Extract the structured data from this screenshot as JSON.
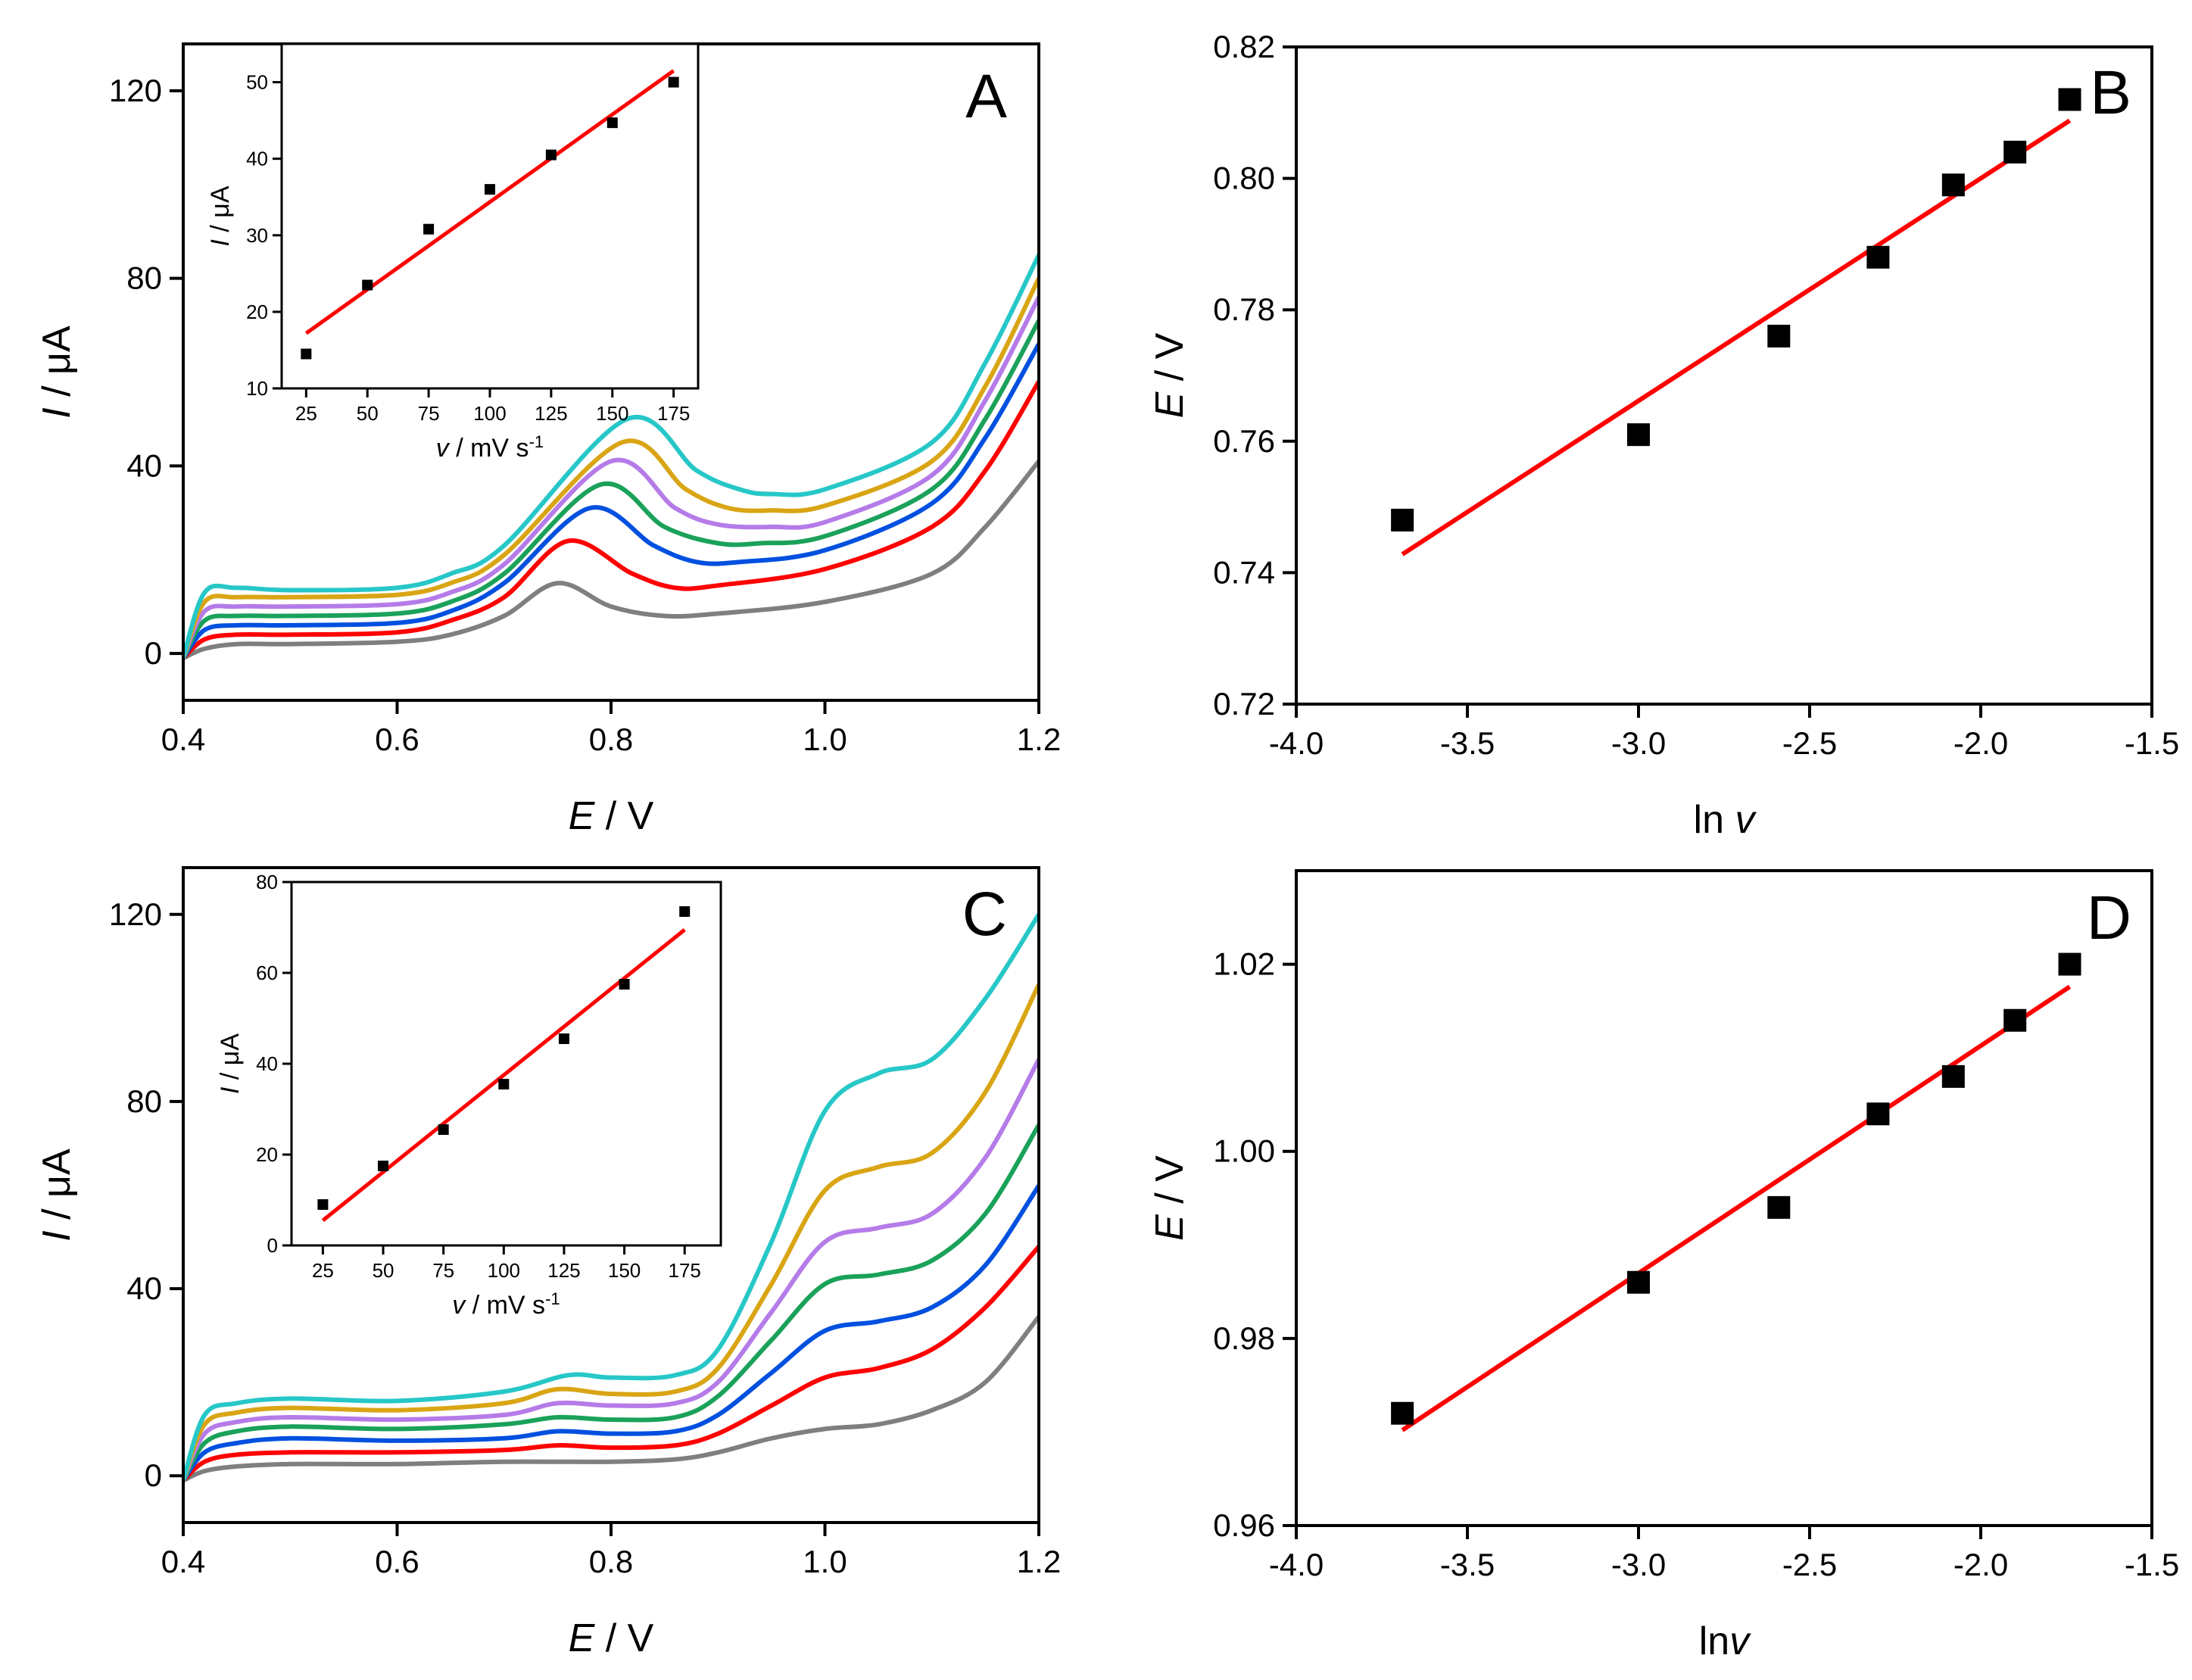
{
  "colors": {
    "fit_line": "#ff0000",
    "marker": "#000000",
    "axis": "#000000"
  },
  "chart_data": [
    {
      "id": "A",
      "type": "line",
      "panel_label": "A",
      "xlabel": {
        "italic": "E",
        "rest": " / V"
      },
      "ylabel": {
        "italic": "I",
        "rest": " / μA"
      },
      "xlim": [
        0.4,
        1.2
      ],
      "ylim": [
        -10,
        130
      ],
      "x_ticks": [
        0.4,
        0.6,
        0.8,
        1.0,
        1.2
      ],
      "x_tick_labels": [
        "0.4",
        "0.6",
        "0.8",
        "1.0",
        "1.2"
      ],
      "y_ticks": [
        0,
        40,
        80,
        120
      ],
      "y_tick_labels": [
        "0",
        "40",
        "80",
        "120"
      ],
      "series_shape": {
        "base": [
          2,
          4,
          6,
          8,
          10,
          12,
          13
        ],
        "peak": [
          12,
          20,
          24,
          27,
          30,
          33,
          36
        ],
        "peak_center": 0.75,
        "peak_shift": 0.01,
        "end": [
          41,
          58,
          66,
          71,
          76,
          80,
          85
        ]
      },
      "series": [
        {
          "color": "#7f7f7f",
          "x": [
            0.4,
            0.42,
            0.45,
            0.5,
            0.6,
            0.65,
            0.7,
            0.75,
            0.8,
            0.85,
            0.9,
            1.0,
            1.1,
            1.15,
            1.2
          ],
          "y": [
            -1,
            1,
            2,
            2,
            2.5,
            4,
            8,
            15,
            10,
            8,
            8.5,
            11,
            17,
            27,
            41
          ]
        },
        {
          "color": "#ff0000",
          "x": [
            0.4,
            0.42,
            0.45,
            0.5,
            0.6,
            0.65,
            0.7,
            0.76,
            0.82,
            0.86,
            0.9,
            1.0,
            1.1,
            1.15,
            1.2
          ],
          "y": [
            -1,
            3,
            4,
            4,
            4.5,
            7,
            12,
            24,
            17,
            14,
            14.5,
            18,
            27,
            39,
            58
          ]
        },
        {
          "color": "#0050e0",
          "x": [
            0.4,
            0.42,
            0.45,
            0.5,
            0.6,
            0.65,
            0.7,
            0.78,
            0.84,
            0.88,
            0.92,
            1.0,
            1.1,
            1.15,
            1.2
          ],
          "y": [
            -1,
            5,
            6,
            6,
            6.5,
            9,
            15,
            31,
            23,
            19.5,
            19.5,
            22,
            32,
            46,
            66
          ]
        },
        {
          "color": "#1aa15a",
          "x": [
            0.4,
            0.42,
            0.45,
            0.5,
            0.6,
            0.65,
            0.7,
            0.79,
            0.85,
            0.9,
            0.94,
            1.0,
            1.1,
            1.15,
            1.2
          ],
          "y": [
            -1,
            7,
            8,
            8,
            8.5,
            11,
            17,
            36,
            27,
            23.5,
            23.5,
            25,
            35,
            50,
            71
          ]
        },
        {
          "color": "#b57be8",
          "x": [
            0.4,
            0.42,
            0.45,
            0.5,
            0.6,
            0.65,
            0.7,
            0.8,
            0.86,
            0.9,
            0.95,
            1.0,
            1.1,
            1.15,
            1.2
          ],
          "y": [
            -1,
            9,
            10,
            10,
            10.5,
            13,
            19,
            41,
            31,
            27.5,
            27,
            28,
            38,
            54,
            76
          ]
        },
        {
          "color": "#d9a514",
          "x": [
            0.4,
            0.42,
            0.45,
            0.5,
            0.6,
            0.65,
            0.7,
            0.81,
            0.87,
            0.91,
            0.95,
            1.0,
            1.1,
            1.15,
            1.2
          ],
          "y": [
            -1,
            11,
            12,
            12,
            12.5,
            15,
            21,
            45,
            35,
            31,
            30.5,
            31.5,
            41,
            57,
            80
          ]
        },
        {
          "color": "#27c7c7",
          "x": [
            0.4,
            0.42,
            0.45,
            0.5,
            0.6,
            0.65,
            0.7,
            0.815,
            0.88,
            0.92,
            0.95,
            1.0,
            1.1,
            1.15,
            1.2
          ],
          "y": [
            -1,
            13,
            14,
            13.5,
            14,
            17,
            23,
            50,
            39,
            35,
            34,
            35,
            45,
            62,
            85
          ]
        }
      ],
      "inset": {
        "type": "scatter",
        "xlabel": {
          "italic": "v",
          "rest": " / mV s",
          "sup": "-1"
        },
        "ylabel": {
          "italic": "I",
          "rest": " / μA"
        },
        "xlim": [
          15,
          185
        ],
        "ylim": [
          10,
          55
        ],
        "x_ticks": [
          25,
          50,
          75,
          100,
          125,
          150,
          175
        ],
        "x_tick_labels": [
          "25",
          "50",
          "75",
          "100",
          "125",
          "150",
          "175"
        ],
        "y_ticks": [
          10,
          20,
          30,
          40,
          50
        ],
        "y_tick_labels": [
          "10",
          "20",
          "30",
          "40",
          "50"
        ],
        "x": [
          25,
          50,
          75,
          100,
          125,
          150,
          175
        ],
        "y": [
          14.5,
          23.5,
          30.8,
          36,
          40.5,
          44.7,
          50
        ],
        "fit": {
          "x": [
            25,
            175
          ],
          "y": [
            17.2,
            51.5
          ]
        }
      }
    },
    {
      "id": "B",
      "type": "scatter",
      "panel_label": "B",
      "xlabel": {
        "italic": "",
        "rest": "ln ",
        "italic_after": "v"
      },
      "ylabel": {
        "italic": "E",
        "rest": " / V"
      },
      "xlim": [
        -4.0,
        -1.5
      ],
      "ylim": [
        0.72,
        0.82
      ],
      "x_ticks": [
        -4.0,
        -3.5,
        -3.0,
        -2.5,
        -2.0,
        -1.5
      ],
      "x_tick_labels": [
        "-4.0",
        "-3.5",
        "-3.0",
        "-2.5",
        "-2.0",
        "-1.5"
      ],
      "y_ticks": [
        0.72,
        0.74,
        0.76,
        0.78,
        0.8,
        0.82
      ],
      "y_tick_labels": [
        "0.72",
        "0.74",
        "0.76",
        "0.78",
        "0.80",
        "0.82"
      ],
      "x": [
        -3.69,
        -3.0,
        -2.59,
        -2.3,
        -2.08,
        -1.9,
        -1.74
      ],
      "y": [
        0.748,
        0.761,
        0.776,
        0.788,
        0.799,
        0.804,
        0.812
      ],
      "fit": {
        "x": [
          -3.69,
          -1.74
        ],
        "y": [
          0.7428,
          0.8088
        ]
      }
    },
    {
      "id": "C",
      "type": "line",
      "panel_label": "C",
      "xlabel": {
        "italic": "E",
        "rest": " / V"
      },
      "ylabel": {
        "italic": "I",
        "rest": " / μA"
      },
      "xlim": [
        0.4,
        1.2
      ],
      "ylim": [
        -10,
        130
      ],
      "x_ticks": [
        0.4,
        0.6,
        0.8,
        1.0,
        1.2
      ],
      "x_tick_labels": [
        "0.4",
        "0.6",
        "0.8",
        "1.0",
        "1.2"
      ],
      "y_ticks": [
        0,
        40,
        80,
        120
      ],
      "y_tick_labels": [
        "0",
        "40",
        "80",
        "120"
      ],
      "series": [
        {
          "color": "#7f7f7f",
          "x": [
            0.4,
            0.42,
            0.45,
            0.5,
            0.6,
            0.7,
            0.8,
            0.86,
            0.9,
            0.95,
            1.0,
            1.05,
            1.1,
            1.15,
            1.2
          ],
          "y": [
            -1,
            1,
            2,
            2.5,
            2.5,
            3,
            3,
            3.5,
            5,
            8,
            10,
            11,
            14,
            20,
            34
          ]
        },
        {
          "color": "#ff0000",
          "x": [
            0.4,
            0.42,
            0.45,
            0.5,
            0.6,
            0.7,
            0.75,
            0.8,
            0.86,
            0.9,
            0.95,
            1.0,
            1.05,
            1.1,
            1.15,
            1.2
          ],
          "y": [
            -1,
            3,
            4.5,
            5,
            5,
            5.5,
            6.5,
            6,
            6.5,
            9,
            15,
            21,
            23,
            27,
            36,
            49
          ]
        },
        {
          "color": "#0050e0",
          "x": [
            0.4,
            0.42,
            0.45,
            0.5,
            0.6,
            0.7,
            0.75,
            0.8,
            0.86,
            0.9,
            0.95,
            1.0,
            1.05,
            1.1,
            1.15,
            1.2
          ],
          "y": [
            -1,
            5,
            7,
            8,
            7.5,
            8,
            9.5,
            9,
            9.5,
            13,
            22,
            31,
            33,
            36,
            45,
            62
          ]
        },
        {
          "color": "#1aa15a",
          "x": [
            0.4,
            0.42,
            0.45,
            0.5,
            0.6,
            0.7,
            0.75,
            0.8,
            0.86,
            0.9,
            0.95,
            1.0,
            1.05,
            1.1,
            1.15,
            1.2
          ],
          "y": [
            -1,
            7,
            9.5,
            10.5,
            10,
            11,
            12.5,
            12,
            12.5,
            17,
            29,
            41,
            43,
            46,
            56,
            75
          ]
        },
        {
          "color": "#b57be8",
          "x": [
            0.4,
            0.42,
            0.45,
            0.5,
            0.6,
            0.7,
            0.75,
            0.8,
            0.86,
            0.9,
            0.95,
            1.0,
            1.05,
            1.1,
            1.15,
            1.2
          ],
          "y": [
            -1,
            9,
            11.5,
            12.5,
            12,
            13,
            15.5,
            15,
            15.5,
            20,
            35,
            50,
            53,
            56,
            68,
            89
          ]
        },
        {
          "color": "#d9a514",
          "x": [
            0.4,
            0.42,
            0.45,
            0.5,
            0.6,
            0.7,
            0.75,
            0.8,
            0.86,
            0.9,
            0.95,
            1.0,
            1.05,
            1.1,
            1.15,
            1.2
          ],
          "y": [
            -1,
            11,
            13.5,
            14.5,
            14,
            15.5,
            18.5,
            17.5,
            18,
            23,
            41,
            61,
            66,
            69,
            82,
            105
          ]
        },
        {
          "color": "#27c7c7",
          "x": [
            0.4,
            0.42,
            0.45,
            0.5,
            0.6,
            0.7,
            0.76,
            0.8,
            0.86,
            0.9,
            0.95,
            1.0,
            1.05,
            1.1,
            1.15,
            1.2
          ],
          "y": [
            -1,
            13,
            15.5,
            16.5,
            16,
            18,
            21.5,
            21,
            21.5,
            27,
            50,
            78,
            86,
            89,
            102,
            120
          ]
        }
      ],
      "inset": {
        "type": "scatter",
        "xlabel": {
          "italic": "v",
          "rest": " / mV s",
          "sup": "-1"
        },
        "ylabel": {
          "italic": "I",
          "rest": " / μA"
        },
        "xlim": [
          12,
          190
        ],
        "ylim": [
          0,
          80
        ],
        "x_ticks": [
          25,
          50,
          75,
          100,
          125,
          150,
          175
        ],
        "x_tick_labels": [
          "25",
          "50",
          "75",
          "100",
          "125",
          "150",
          "175"
        ],
        "y_ticks": [
          0,
          20,
          40,
          60,
          80
        ],
        "y_tick_labels": [
          "0",
          "20",
          "40",
          "60",
          "80"
        ],
        "x": [
          25,
          50,
          75,
          100,
          125,
          150,
          175
        ],
        "y": [
          9,
          17.5,
          25.5,
          35.5,
          45.5,
          57.5,
          73.5
        ],
        "fit": {
          "x": [
            25,
            175
          ],
          "y": [
            5.5,
            69.5
          ]
        }
      }
    },
    {
      "id": "D",
      "type": "scatter",
      "panel_label": "D",
      "xlabel": {
        "italic": "",
        "rest": "ln",
        "italic_after": "v"
      },
      "ylabel": {
        "italic": "E",
        "rest": " / V"
      },
      "xlim": [
        -4.0,
        -1.5
      ],
      "ylim": [
        0.96,
        1.03
      ],
      "x_ticks": [
        -4.0,
        -3.5,
        -3.0,
        -2.5,
        -2.0,
        -1.5
      ],
      "x_tick_labels": [
        "-4.0",
        "-3.5",
        "-3.0",
        "-2.5",
        "-2.0",
        "-1.5"
      ],
      "y_ticks": [
        0.96,
        0.98,
        1.0,
        1.02
      ],
      "y_tick_labels": [
        "0.96",
        "0.98",
        "1.00",
        "1.02"
      ],
      "x": [
        -3.69,
        -3.0,
        -2.59,
        -2.3,
        -2.08,
        -1.9,
        -1.74
      ],
      "y": [
        0.972,
        0.986,
        0.994,
        1.004,
        1.008,
        1.014,
        1.02
      ],
      "fit": {
        "x": [
          -3.69,
          -1.74
        ],
        "y": [
          0.9702,
          1.0176
        ]
      }
    }
  ]
}
